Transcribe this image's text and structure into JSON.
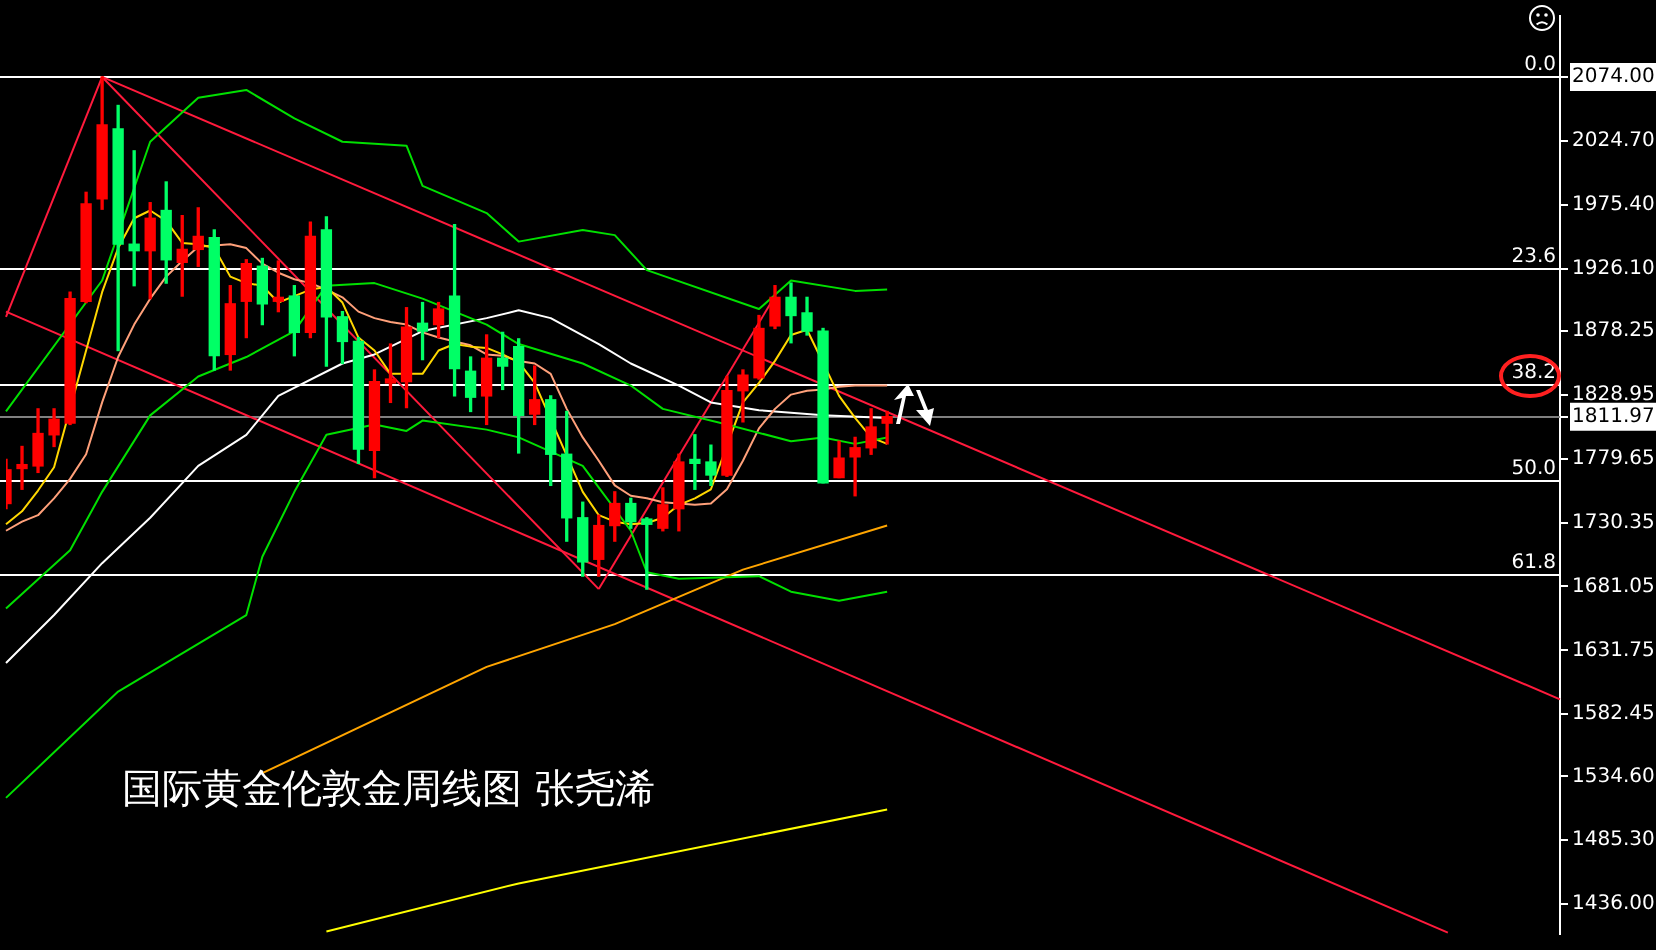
{
  "chart_data": {
    "type": "candlestick",
    "categories": [
      null,
      null,
      null,
      null,
      null,
      null,
      null,
      null,
      null,
      null,
      null,
      null,
      null,
      null,
      null,
      null,
      null,
      null,
      null,
      null,
      null,
      null,
      null,
      null,
      null,
      null,
      null,
      null,
      null,
      null,
      null,
      null,
      null,
      null,
      null,
      null,
      null,
      null,
      null,
      null,
      null,
      null,
      null,
      null,
      null,
      null,
      null,
      null,
      null,
      null,
      null,
      null,
      null,
      null,
      null,
      null,
      null,
      null,
      null,
      null,
      null,
      null,
      null,
      null,
      null,
      null,
      null,
      null,
      null,
      null,
      null,
      null,
      null,
      null,
      null,
      null,
      null,
      null,
      null,
      null,
      null,
      null,
      null,
      null,
      null,
      null,
      null,
      null,
      null,
      null,
      null,
      null,
      null,
      null,
      null,
      null,
      null,
      null
    ],
    "ohlc": [
      [
        1745,
        1779,
        1741,
        1771
      ],
      [
        1772,
        1789,
        1756,
        1775
      ],
      [
        1774,
        1818,
        1769,
        1799
      ],
      [
        1798,
        1818,
        1789,
        1810
      ],
      [
        1807,
        1908,
        1806,
        1903
      ],
      [
        1901,
        1985,
        1900,
        1976
      ],
      [
        1980,
        2074,
        1972,
        2037
      ],
      [
        2034,
        2052,
        1863,
        1945
      ],
      [
        1945,
        2017,
        1913,
        1940
      ],
      [
        1940,
        1977,
        1903,
        1965
      ],
      [
        1971,
        1993,
        1915,
        1933
      ],
      [
        1931,
        1967,
        1905,
        1941
      ],
      [
        1941,
        1973,
        1928,
        1951
      ],
      [
        1950,
        1956,
        1848,
        1859
      ],
      [
        1860,
        1913,
        1848,
        1899
      ],
      [
        1901,
        1933,
        1873,
        1930
      ],
      [
        1928,
        1934,
        1883,
        1899
      ],
      [
        1901,
        1932,
        1893,
        1904
      ],
      [
        1905,
        1913,
        1859,
        1877
      ],
      [
        1877,
        1962,
        1873,
        1951
      ],
      [
        1956,
        1966,
        1851,
        1889
      ],
      [
        1889,
        1893,
        1853,
        1870
      ],
      [
        1870,
        1873,
        1776,
        1787
      ],
      [
        1786,
        1848,
        1765,
        1839
      ],
      [
        1838,
        1868,
        1823,
        1841
      ],
      [
        1839,
        1896,
        1819,
        1881
      ],
      [
        1884,
        1900,
        1856,
        1878
      ],
      [
        1883,
        1900,
        1873,
        1895
      ],
      [
        1905,
        1960,
        1828,
        1849
      ],
      [
        1847,
        1858,
        1816,
        1827
      ],
      [
        1828,
        1875,
        1806,
        1857
      ],
      [
        1857,
        1877,
        1833,
        1851
      ],
      [
        1866,
        1872,
        1784,
        1813
      ],
      [
        1814,
        1851,
        1806,
        1825
      ],
      [
        1825,
        1828,
        1759,
        1783
      ],
      [
        1783,
        1816,
        1716,
        1734
      ],
      [
        1734,
        1746,
        1689,
        1700
      ],
      [
        1702,
        1736,
        1689,
        1728
      ],
      [
        1728,
        1754,
        1716,
        1745
      ],
      [
        1745,
        1749,
        1726,
        1731
      ],
      [
        1733,
        1734,
        1679,
        1729
      ],
      [
        1726,
        1757,
        1724,
        1744
      ],
      [
        1741,
        1783,
        1724,
        1777
      ],
      [
        1779,
        1798,
        1756,
        1776
      ],
      [
        1777,
        1790,
        1759,
        1767
      ],
      [
        1767,
        1843,
        1766,
        1832
      ],
      [
        1832,
        1848,
        1808,
        1844
      ],
      [
        1842,
        1890,
        1841,
        1880
      ],
      [
        1882,
        1913,
        1880,
        1904
      ],
      [
        1904,
        1915,
        1869,
        1890
      ],
      [
        1892,
        1904,
        1875,
        1878
      ],
      [
        1878,
        1880,
        1761,
        1761
      ],
      [
        1765,
        1793,
        1765,
        1780
      ],
      [
        1781,
        1796,
        1751,
        1788
      ],
      [
        1788,
        1818,
        1783,
        1804
      ],
      [
        1807,
        1816,
        1791,
        1812
      ],
      null,
      null,
      null,
      null,
      null,
      null,
      null,
      null,
      null,
      null,
      null,
      null,
      null,
      null,
      null,
      null,
      null,
      null,
      null,
      null,
      null,
      null,
      null,
      null,
      null,
      null,
      null,
      null,
      null,
      null,
      null,
      null,
      null,
      null,
      null,
      null,
      null,
      null,
      null,
      null,
      null,
      null
    ],
    "colors": [
      "#ff0000",
      "#ff0000",
      "#ff0000",
      "#ff0000",
      "#ff0000",
      "#ff0000",
      "#ff0000",
      "#00ff66",
      "#00ff66",
      "#ff0000",
      "#00ff66",
      "#ff0000",
      "#ff0000",
      "#00ff66",
      "#ff0000",
      "#ff0000",
      "#00ff66",
      "#ff0000",
      "#00ff66",
      "#ff0000",
      "#00ff66",
      "#00ff66",
      "#00ff66",
      "#ff0000",
      "#ff0000",
      "#ff0000",
      "#00ff66",
      "#ff0000",
      "#00ff66",
      "#00ff66",
      "#ff0000",
      "#00ff66",
      "#00ff66",
      "#ff0000",
      "#00ff66",
      "#00ff66",
      "#00ff66",
      "#ff0000",
      "#ff0000",
      "#00ff66",
      "#00ff66",
      "#ff0000",
      "#ff0000",
      "#00ff66",
      "#00ff66",
      "#ff0000",
      "#ff0000",
      "#ff0000",
      "#ff0000",
      "#00ff66",
      "#00ff66",
      "#00ff66",
      "#ff0000",
      "#ff0000",
      "#ff0000",
      "#ff0000",
      null,
      null,
      null,
      null,
      null,
      null,
      null,
      null,
      null,
      null,
      null,
      null,
      null,
      null,
      null,
      null,
      null,
      null,
      null,
      null,
      null,
      null,
      null,
      null,
      null,
      null,
      null,
      null,
      null,
      null,
      null,
      null,
      null,
      null,
      null,
      null,
      null,
      null,
      null,
      null,
      null,
      null
    ],
    "series": [
      {
        "type": "line",
        "color": "#00e000",
        "values": [
          1816,
          null,
          null,
          null,
          null,
          null,
          1917,
          null,
          null,
          2024,
          null,
          null,
          2058,
          null,
          null,
          2064,
          null,
          null,
          2042,
          null,
          null,
          2024,
          null,
          null,
          null,
          2021,
          1990,
          null,
          null,
          null,
          1969,
          null,
          1947,
          null,
          null,
          null,
          1956,
          null,
          1952,
          null,
          1925,
          null,
          null,
          null,
          null,
          null,
          null,
          1895,
          null,
          1917,
          null,
          null,
          null,
          1909,
          null,
          1910,
          null,
          null,
          null,
          null,
          null,
          null,
          null,
          null,
          null,
          null,
          null,
          null,
          null,
          null,
          null,
          null,
          null,
          null,
          null,
          null,
          null,
          null,
          null,
          null,
          null,
          null,
          null,
          null,
          null,
          null,
          null,
          null,
          null,
          null,
          null,
          null,
          null,
          null,
          null,
          null,
          null,
          null
        ]
      },
      {
        "type": "line",
        "color": "#00e000",
        "values": [
          1664,
          null,
          null,
          null,
          1709,
          null,
          1754,
          null,
          null,
          1813,
          null,
          null,
          1843,
          null,
          null,
          1858,
          null,
          null,
          1878,
          null,
          1913,
          null,
          null,
          1915,
          null,
          null,
          1903,
          null,
          null,
          null,
          1883,
          null,
          1868,
          null,
          null,
          null,
          1853,
          null,
          null,
          1836,
          null,
          1818,
          null,
          null,
          null,
          1806,
          null,
          null,
          null,
          1793,
          null,
          1796,
          null,
          1791,
          null,
          1796,
          null,
          null,
          null,
          null,
          null,
          null,
          null,
          null,
          null,
          null,
          null,
          null,
          null,
          null,
          null,
          null,
          null,
          null,
          null,
          null,
          null,
          null,
          null,
          null,
          null,
          null,
          null,
          null,
          null,
          null,
          null,
          null,
          null,
          null,
          null,
          null,
          null,
          null,
          null,
          null,
          null,
          null
        ]
      },
      {
        "type": "line",
        "color": "#00e000",
        "values": [
          1518,
          null,
          null,
          null,
          null,
          null,
          null,
          1600,
          null,
          null,
          null,
          null,
          null,
          null,
          null,
          1659,
          1704,
          null,
          1754,
          null,
          1798,
          null,
          null,
          1806,
          null,
          1801,
          1809,
          null,
          null,
          null,
          1802,
          null,
          1796,
          null,
          null,
          null,
          1774,
          null,
          null,
          1724,
          1692,
          null,
          1687,
          null,
          null,
          null,
          null,
          1689,
          null,
          1677,
          null,
          null,
          1670,
          null,
          null,
          1677,
          null,
          null,
          null,
          null,
          null,
          null,
          null,
          null,
          null,
          null,
          null,
          null,
          null,
          null,
          null,
          null,
          null,
          null,
          null,
          null,
          null,
          null,
          null,
          null,
          null,
          null,
          null,
          null,
          null,
          null,
          null,
          null,
          null,
          null,
          null,
          null,
          null,
          null,
          null,
          null,
          null,
          null
        ]
      },
      {
        "type": "line",
        "color": "#ffd700",
        "values": [
          1729,
          1739,
          1755,
          1773,
          null,
          1863,
          1908,
          1942,
          1965,
          1971,
          1963,
          1946,
          1945,
          1942,
          1920,
          1915,
          1913,
          1900,
          1905,
          1910,
          1912,
          1900,
          1873,
          1863,
          1845,
          1845,
          1845,
          1863,
          1868,
          1866,
          1865,
          1860,
          1854,
          1838,
          null,
          null,
          1754,
          1736,
          1731,
          1729,
          1730,
          1734,
          1744,
          1749,
          1756,
          null,
          1823,
          1838,
          1855,
          1875,
          1879,
          null,
          1828,
          1811,
          1796,
          1791,
          null,
          null,
          null,
          null,
          null,
          null,
          null,
          null,
          null,
          null,
          null,
          null,
          null,
          null,
          null,
          null,
          null,
          null,
          null,
          null,
          null,
          null,
          null,
          null,
          null,
          null,
          null,
          null,
          null,
          null,
          null,
          null,
          null,
          null,
          null,
          null,
          null,
          null,
          null,
          null,
          null,
          null
        ]
      },
      {
        "type": "line",
        "color": "#ffa07a",
        "values": [
          1724,
          1731,
          1736,
          1749,
          1764,
          1783,
          1823,
          1858,
          1883,
          1903,
          1920,
          1932,
          1943,
          1944,
          1945,
          1942,
          1930,
          1923,
          1918,
          1915,
          1910,
          1904,
          1893,
          1888,
          1885,
          1883,
          1877,
          1873,
          1870,
          1867,
          1860,
          1859,
          1855,
          1853,
          1845,
          1818,
          1796,
          1778,
          1759,
          1751,
          1749,
          1746,
          1745,
          1744,
          1745,
          1756,
          1778,
          1803,
          1818,
          1829,
          1832,
          1833,
          1835,
          1836,
          1836,
          1836,
          null,
          null,
          null,
          null,
          null,
          null,
          null,
          null,
          null,
          null,
          null,
          null,
          null,
          null,
          null,
          null,
          null,
          null,
          null,
          null,
          null,
          null,
          null,
          null,
          null,
          null,
          null,
          null,
          null,
          null,
          null,
          null,
          null,
          null,
          null,
          null,
          null,
          null,
          null,
          null,
          null,
          null
        ]
      },
      {
        "type": "line",
        "color": "#ffffff",
        "values": [
          1622,
          null,
          null,
          1659,
          null,
          null,
          1699,
          null,
          null,
          1734,
          null,
          null,
          1774,
          null,
          null,
          1798,
          null,
          1828,
          null,
          null,
          null,
          1853,
          null,
          1860,
          null,
          null,
          1878,
          null,
          null,
          null,
          1888,
          null,
          1894,
          null,
          1888,
          null,
          null,
          1868,
          null,
          1853,
          null,
          null,
          1836,
          null,
          1823,
          null,
          null,
          1817,
          null,
          null,
          null,
          1813,
          null,
          null,
          null,
          1811,
          null,
          null,
          null,
          null,
          null,
          null,
          null,
          null,
          null,
          null,
          null,
          null,
          null,
          null,
          null,
          null,
          null,
          null,
          null,
          null,
          null,
          null,
          null,
          null,
          null,
          null,
          null,
          null,
          null,
          null,
          null,
          null,
          null,
          null,
          null,
          null,
          null,
          null,
          null,
          null,
          null,
          null
        ]
      },
      {
        "type": "line",
        "color": "#ffa500",
        "values": [
          null,
          null,
          null,
          null,
          null,
          null,
          null,
          null,
          null,
          null,
          null,
          null,
          null,
          null,
          null,
          null,
          1537,
          null,
          null,
          null,
          null,
          null,
          null,
          null,
          null,
          null,
          null,
          null,
          null,
          null,
          1619,
          null,
          null,
          null,
          null,
          null,
          null,
          null,
          1652,
          null,
          null,
          null,
          null,
          null,
          null,
          null,
          1694,
          null,
          null,
          null,
          null,
          null,
          null,
          null,
          null,
          1728,
          null,
          null,
          null,
          null,
          null,
          null,
          null,
          null,
          null,
          null,
          null,
          null,
          null,
          null,
          null,
          null,
          null,
          null,
          null,
          null,
          null,
          null,
          null,
          null,
          null,
          null,
          null,
          null,
          null,
          null,
          null,
          null,
          null,
          null,
          null,
          null,
          null,
          null,
          null,
          null,
          null,
          null
        ]
      },
      {
        "type": "line",
        "color": "#ffff00",
        "values": [
          null,
          null,
          null,
          null,
          null,
          null,
          null,
          null,
          null,
          null,
          null,
          null,
          null,
          null,
          null,
          null,
          null,
          null,
          null,
          null,
          1415,
          null,
          null,
          null,
          null,
          null,
          null,
          null,
          null,
          null,
          null,
          null,
          1452,
          null,
          null,
          null,
          null,
          null,
          null,
          null,
          null,
          null,
          null,
          null,
          null,
          null,
          null,
          null,
          null,
          null,
          null,
          null,
          null,
          null,
          null,
          1509,
          null,
          null,
          null,
          null,
          null,
          null,
          null,
          null,
          null,
          null,
          null,
          null,
          null,
          null,
          null,
          null,
          null,
          null,
          null,
          null,
          null,
          null,
          null,
          null,
          null,
          null,
          null,
          null,
          null,
          null,
          null,
          null,
          null,
          null,
          null,
          null,
          null,
          null,
          null,
          null,
          null,
          null
        ]
      },
      {
        "type": "line",
        "color": "#ff1a3c",
        "values": [
          1889,
          null,
          null,
          null,
          null,
          null,
          2074,
          null,
          null,
          null,
          null,
          null,
          null,
          null,
          null,
          null,
          null,
          null,
          null,
          null,
          null,
          null,
          null,
          null,
          null,
          null,
          null,
          null,
          null,
          null,
          null,
          null,
          null,
          null,
          null,
          null,
          null,
          null,
          null,
          null,
          null,
          null,
          null,
          null,
          null,
          null,
          null,
          null,
          null,
          null,
          null,
          null,
          null,
          null,
          null,
          null,
          null,
          null,
          null,
          null,
          null,
          null,
          null,
          null,
          null,
          null,
          null,
          null,
          null,
          null,
          null,
          null,
          null,
          null,
          null,
          null,
          null,
          null,
          null,
          null,
          null,
          null,
          null,
          null,
          null,
          null,
          null,
          null,
          null,
          null,
          null,
          null,
          null,
          null,
          null,
          null,
          null,
          null
        ]
      },
      {
        "type": "line",
        "color": "#ff1a3c",
        "values": [
          null,
          null,
          null,
          null,
          null,
          null,
          2074,
          null,
          null,
          null,
          null,
          null,
          null,
          null,
          null,
          null,
          null,
          null,
          null,
          null,
          null,
          null,
          null,
          null,
          null,
          null,
          null,
          null,
          null,
          null,
          null,
          null,
          null,
          null,
          null,
          null,
          null,
          1679,
          null,
          null,
          null,
          null,
          null,
          null,
          null,
          null,
          null,
          null,
          null,
          null,
          null,
          null,
          null,
          null,
          null,
          null,
          null,
          null,
          null,
          null,
          null,
          null,
          null,
          null,
          null,
          null,
          null,
          null,
          null,
          null,
          null,
          null,
          null,
          null,
          null,
          null,
          null,
          null,
          null,
          null,
          null,
          null,
          null,
          null,
          null,
          null,
          null,
          null,
          null,
          null,
          null,
          null,
          null,
          null,
          null,
          null,
          null,
          null
        ]
      },
      {
        "type": "line",
        "color": "#ff1a3c",
        "values": [
          null,
          null,
          null,
          null,
          null,
          null,
          null,
          null,
          null,
          null,
          null,
          null,
          null,
          null,
          null,
          null,
          null,
          null,
          null,
          null,
          null,
          null,
          null,
          null,
          null,
          null,
          null,
          null,
          null,
          null,
          null,
          null,
          null,
          null,
          null,
          null,
          null,
          1679,
          null,
          null,
          null,
          null,
          null,
          null,
          null,
          null,
          null,
          null,
          1905,
          null,
          null,
          null,
          null,
          null,
          null,
          null,
          null,
          null,
          null,
          null,
          null,
          null,
          null,
          null,
          null,
          null,
          null,
          null,
          null,
          null,
          null,
          null,
          null,
          null,
          null,
          null,
          null,
          null,
          null,
          null,
          null,
          null,
          null,
          null,
          null,
          null,
          null,
          null,
          null,
          null,
          null,
          null,
          null,
          null,
          null,
          null,
          null,
          null
        ]
      },
      {
        "type": "line",
        "color": "#ff1a3c",
        "values": [
          null,
          null,
          null,
          null,
          null,
          null,
          2074,
          null,
          null,
          null,
          null,
          null,
          null,
          null,
          null,
          null,
          null,
          null,
          null,
          null,
          null,
          null,
          null,
          null,
          null,
          null,
          null,
          null,
          null,
          null,
          null,
          null,
          null,
          null,
          null,
          null,
          null,
          null,
          null,
          null,
          null,
          null,
          null,
          null,
          null,
          null,
          null,
          null,
          null,
          null,
          null,
          null,
          null,
          null,
          null,
          null,
          null,
          null,
          null,
          null,
          null,
          null,
          null,
          null,
          null,
          null,
          null,
          null,
          null,
          null,
          null,
          null,
          null,
          null,
          null,
          null,
          null,
          null,
          null,
          null,
          null,
          null,
          null,
          null,
          null,
          null,
          null,
          null,
          null,
          null,
          null,
          null,
          null,
          null,
          null,
          null,
          null,
          1594
        ]
      },
      {
        "type": "line",
        "color": "#ff1a3c",
        "values": [
          1893,
          null,
          null,
          null,
          null,
          null,
          null,
          null,
          null,
          null,
          null,
          null,
          null,
          null,
          null,
          null,
          null,
          null,
          null,
          null,
          null,
          null,
          null,
          null,
          null,
          null,
          null,
          null,
          null,
          null,
          null,
          null,
          null,
          null,
          null,
          null,
          null,
          null,
          null,
          null,
          null,
          null,
          null,
          null,
          null,
          null,
          null,
          null,
          null,
          null,
          null,
          null,
          null,
          null,
          null,
          null,
          null,
          null,
          null,
          null,
          null,
          null,
          null,
          null,
          null,
          null,
          null,
          null,
          null,
          null,
          null,
          null,
          null,
          null,
          null,
          null,
          null,
          null,
          null,
          null,
          null,
          null,
          null,
          null,
          null,
          null,
          null,
          null,
          null,
          null,
          1414,
          null,
          null,
          null,
          null,
          null,
          null,
          null
        ]
      }
    ],
    "ylim": [
      1413,
      2121
    ],
    "yticks": [
      {
        "value": 2074,
        "label": "2074.00"
      },
      {
        "value": 2024.7,
        "label": "2024.70"
      },
      {
        "value": 1975.4,
        "label": "1975.40"
      },
      {
        "value": 1926.1,
        "label": "1926.10"
      },
      {
        "value": 1878.25,
        "label": "1878.25"
      },
      {
        "value": 1828.95,
        "label": "1828.95"
      },
      {
        "value": 1811.97,
        "label": "1811.97"
      },
      {
        "value": 1779.65,
        "label": "1779.65"
      },
      {
        "value": 1730.35,
        "label": "1730.35"
      },
      {
        "value": 1681.05,
        "label": "1681.05"
      },
      {
        "value": 1631.75,
        "label": "1631.75"
      },
      {
        "value": 1582.45,
        "label": "1582.45"
      },
      {
        "value": 1534.6,
        "label": "1534.60"
      },
      {
        "value": 1485.3,
        "label": "1485.30"
      },
      {
        "value": 1436,
        "label": "1436.00"
      }
    ],
    "ref_lines": [
      {
        "axis": "y",
        "value": 2074,
        "color": "#ffffff"
      },
      {
        "axis": "y",
        "value": 1927.4,
        "color": "#ffffff"
      },
      {
        "axis": "y",
        "value": 1836.8,
        "color": "#ffffff"
      },
      {
        "axis": "y",
        "value": 1763.5,
        "color": "#ffffff"
      },
      {
        "axis": "y",
        "value": 1690.2,
        "color": "#ffffff"
      },
      {
        "axis": "y",
        "value": 1811.97,
        "color": "#808080"
      }
    ],
    "annotations": [
      {
        "text": "0.0",
        "y": 2074
      },
      {
        "text": "23.6",
        "y": 1927.4
      },
      {
        "text": "38.2",
        "y": 1836.8
      },
      {
        "text": "50.0",
        "y": 1763.5
      },
      {
        "text": "61.8",
        "y": 1690.2
      },
      "国际黄金伦敦金周线图 张尧浠"
    ],
    "grid": false,
    "legend": false,
    "marker": "none",
    "tick_labels": "y"
  }
}
